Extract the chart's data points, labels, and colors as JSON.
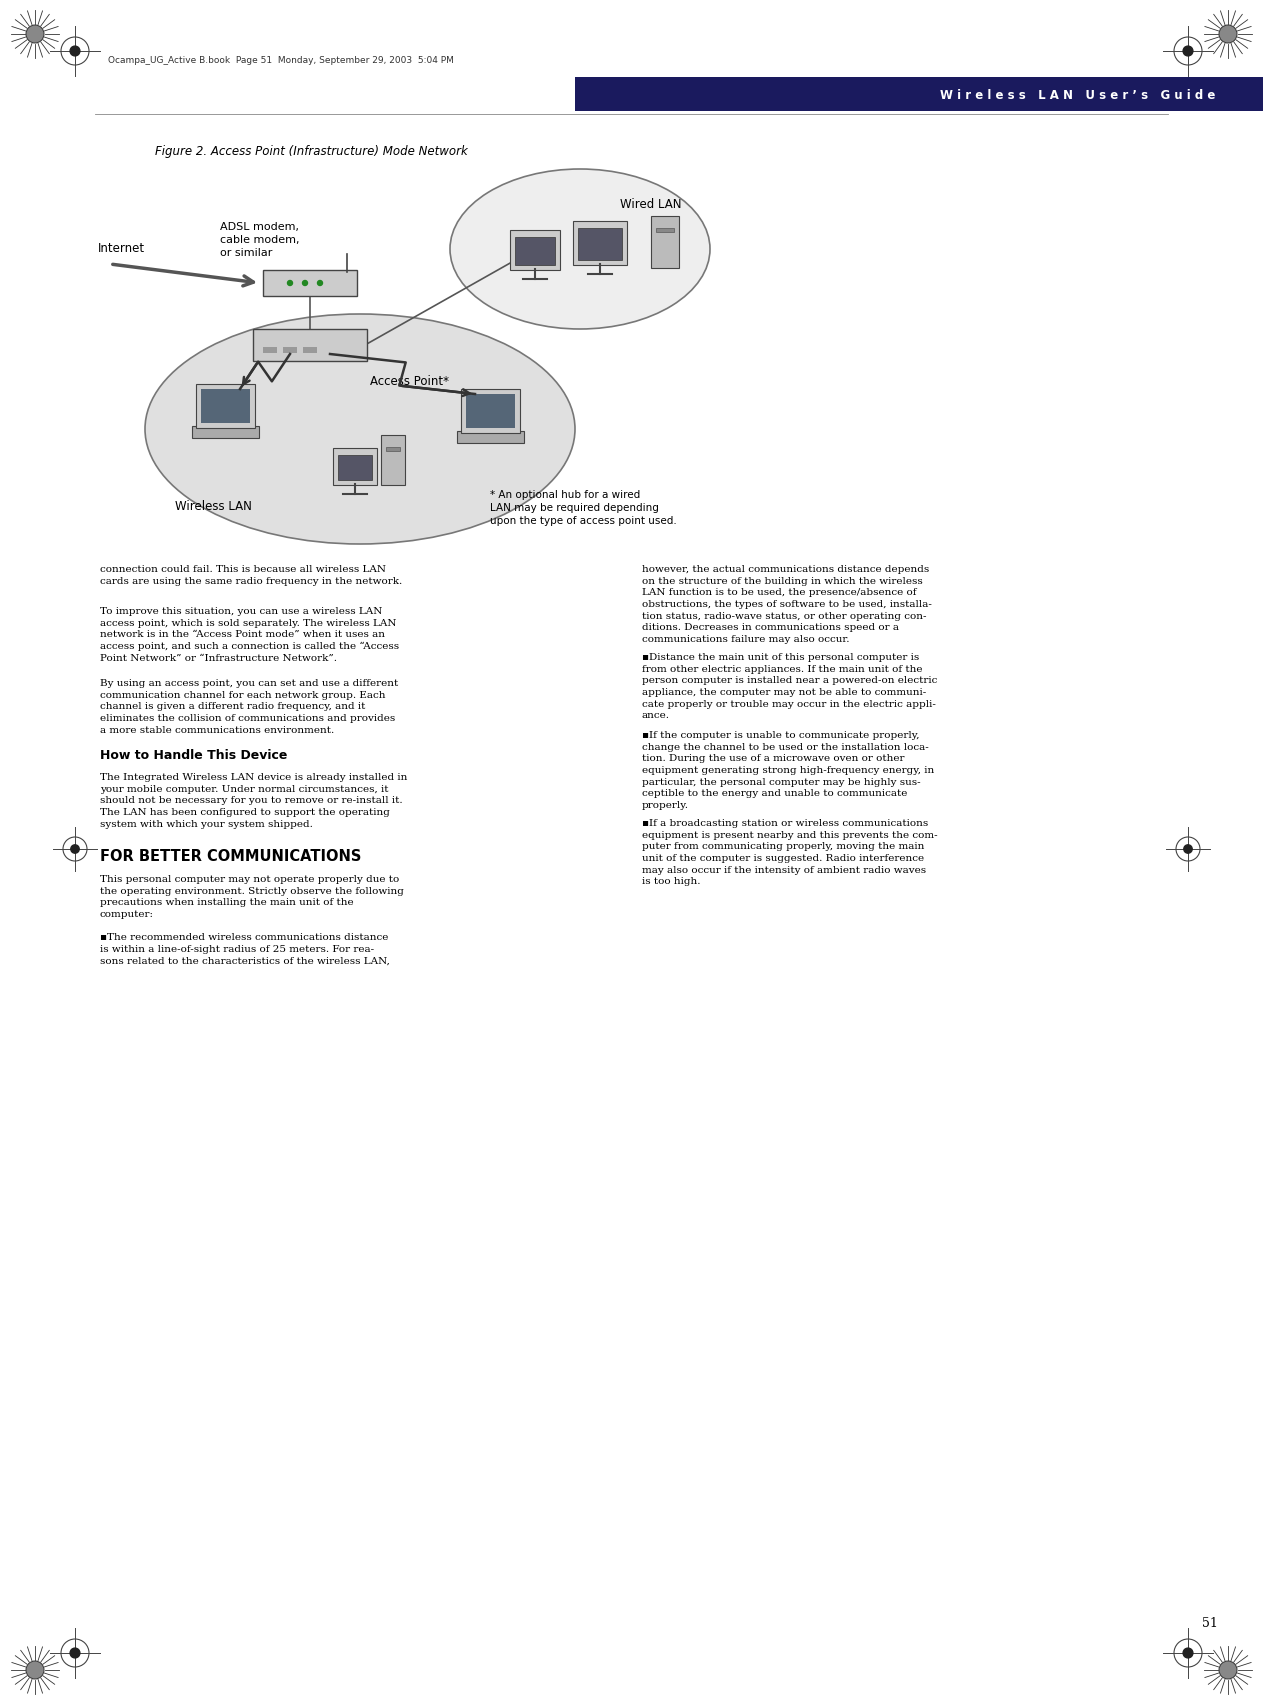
{
  "page_number": "51",
  "header_text": "W i r e l e s s   L A N   U s e r ’ s   G u i d e",
  "footer_text": "Ocampa_UG_Active B.book  Page 51  Monday, September 29, 2003  5:04 PM",
  "figure_title": "Figure 2. Access Point (Infrastructure) Mode Network",
  "diagram_labels": {
    "internet": "Internet",
    "adsl": "ADSL modem,\ncable modem,\nor similar",
    "wired_lan": "Wired LAN",
    "access_point": "Access Point*",
    "wireless_lan": "Wireless LAN",
    "footnote": "* An optional hub for a wired\nLAN may be required depending\nupon the type of access point used."
  },
  "section_heading1": "How to Handle This Device",
  "section_heading2": "FOR BETTER COMMUNICATIONS",
  "left_column_paragraphs": [
    "connection could fail. This is because all wireless LAN\ncards are using the same radio frequency in the network.",
    "To improve this situation, you can use a wireless LAN\naccess point, which is sold separately. The wireless LAN\nnetwork is in the “Access Point mode” when it uses an\naccess point, and such a connection is called the “Access\nPoint Network” or “Infrastructure Network”.",
    "By using an access point, you can set and use a different\ncommunication channel for each network group. Each\nchannel is given a different radio frequency, and it\neliminates the collision of communications and provides\na more stable communications environment.",
    "The Integrated Wireless LAN device is already installed in\nyour mobile computer. Under normal circumstances, it\nshould not be necessary for you to remove or re-install it.\nThe LAN has been configured to support the operating\nsystem with which your system shipped.",
    "This personal computer may not operate properly due to\nthe operating environment. Strictly observe the following\nprecautions when installing the main unit of the\ncomputer:",
    "▪The recommended wireless communications distance\nis within a line-of-sight radius of 25 meters. For rea-\nsons related to the characteristics of the wireless LAN,"
  ],
  "right_column_paragraphs": [
    "however, the actual communications distance depends\non the structure of the building in which the wireless\nLAN function is to be used, the presence/absence of\nobstructions, the types of software to be used, installa-\ntion status, radio-wave status, or other operating con-\nditions. Decreases in communications speed or a\ncommunications failure may also occur.",
    "▪Distance the main unit of this personal computer is\nfrom other electric appliances. If the main unit of the\nperson computer is installed near a powered-on electric\nappliance, the computer may not be able to communi-\ncate properly or trouble may occur in the electric appli-\nance.",
    "▪If the computer is unable to communicate properly,\nchange the channel to be used or the installation loca-\ntion. During the use of a microwave oven or other\nequipment generating strong high-frequency energy, in\nparticular, the personal computer may be highly sus-\nceptible to the energy and unable to communicate\nproperly.",
    "▪If a broadcasting station or wireless communications\nequipment is present nearby and this prevents the com-\nputer from communicating properly, moving the main\nunit of the computer is suggested. Radio interference\nmay also occur if the intensity of ambient radio waves\nis too high."
  ],
  "bg_color": "#ffffff",
  "header_bg": "#1a1a5e",
  "header_text_color": "#ffffff",
  "body_text_color": "#000000",
  "body_font_size": 7.5,
  "heading_font_size": 9.0,
  "figure_title_font_size": 8.5
}
